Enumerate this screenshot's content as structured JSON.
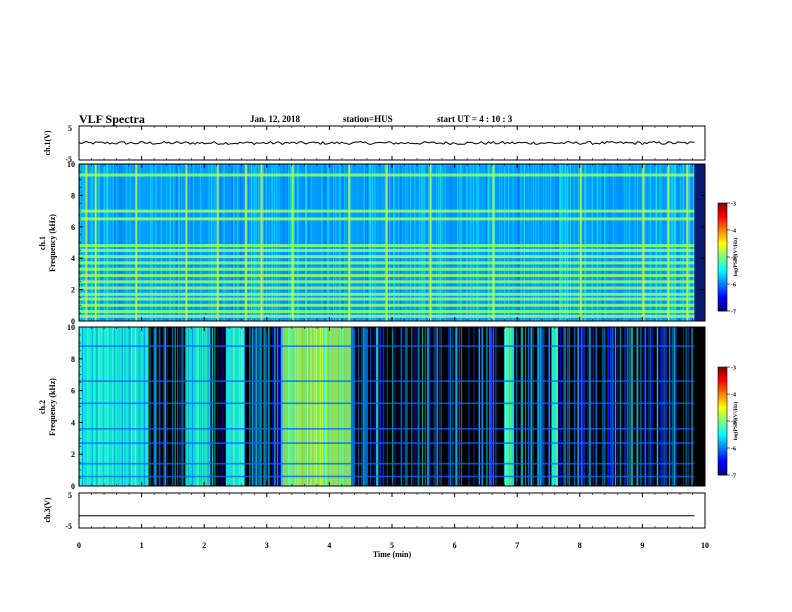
{
  "header": {
    "title": "VLF Spectra",
    "date": "Jan. 12, 2018",
    "station": "station=HUS",
    "start": "start UT =  4 : 10 : 3"
  },
  "chart_data": [
    {
      "type": "line",
      "name": "ch1-waveform",
      "ylabel": "ch.1(V)",
      "ylim": [
        -5,
        5
      ],
      "yticks": [
        "5",
        "-5"
      ],
      "xlim": [
        0,
        10
      ],
      "x": [
        0,
        9.83
      ],
      "y": [
        0,
        0
      ]
    },
    {
      "type": "heatmap",
      "name": "ch1-spectrogram",
      "ylabel": "ch.1\nFrequency (kHz)",
      "ylim": [
        0,
        10
      ],
      "yticks": [
        "0",
        "2",
        "4",
        "6",
        "8",
        "10"
      ],
      "xlim": [
        0,
        10
      ],
      "xmax_data": 9.83,
      "colorbar": {
        "label": "log(PSD)(V²/Hz)",
        "min": -7,
        "max": -3,
        "ticks": [
          "-3",
          "-4",
          "-5",
          "-6",
          "-7"
        ]
      },
      "background_level": -5.9,
      "horizontal_bands_khz": [
        0.3,
        0.6,
        1.0,
        1.4,
        1.7,
        2.1,
        2.5,
        2.9,
        3.3,
        3.7,
        4.1,
        4.5,
        4.8,
        6.5,
        7.0,
        9.3
      ],
      "vertical_bursts_min": [
        0.1,
        0.25,
        0.9,
        1.7,
        2.2,
        2.65,
        2.9,
        3.4,
        4.3,
        4.9,
        5.6,
        6.6,
        8.0,
        9.0,
        9.4,
        9.7
      ]
    },
    {
      "type": "heatmap",
      "name": "ch2-spectrogram",
      "ylabel": "ch.2\nFrequency (kHz)",
      "ylim": [
        0,
        10
      ],
      "yticks": [
        "0",
        "2",
        "4",
        "6",
        "8",
        "10"
      ],
      "xlim": [
        0,
        10
      ],
      "xmax_data": 9.83,
      "colorbar": {
        "label": "log(PSD)(V²/Hz)",
        "min": -7,
        "max": -3,
        "ticks": [
          "-3",
          "-4",
          "-5",
          "-6",
          "-7"
        ]
      },
      "background_level": -7,
      "active_intervals_min": [
        [
          0.0,
          1.1
        ],
        [
          1.7,
          2.1
        ],
        [
          2.35,
          2.65
        ],
        [
          3.25,
          4.35
        ],
        [
          6.8,
          6.95
        ],
        [
          7.55,
          7.65
        ]
      ],
      "horizontal_bands_khz": [
        0.6,
        1.4,
        2.7,
        3.6,
        5.2,
        6.6,
        8.8
      ]
    },
    {
      "type": "line",
      "name": "ch3-waveform",
      "ylabel": "ch.3(V)",
      "ylim": [
        -5,
        5
      ],
      "yticks": [
        "5",
        "-5"
      ],
      "xlim": [
        0,
        10
      ],
      "x": [
        0,
        9.83
      ],
      "y": [
        -1.5,
        -1.5
      ]
    }
  ],
  "xaxis": {
    "label": "Time (min)",
    "ticks": [
      "0",
      "1",
      "2",
      "3",
      "4",
      "5",
      "6",
      "7",
      "8",
      "9",
      "10"
    ]
  }
}
